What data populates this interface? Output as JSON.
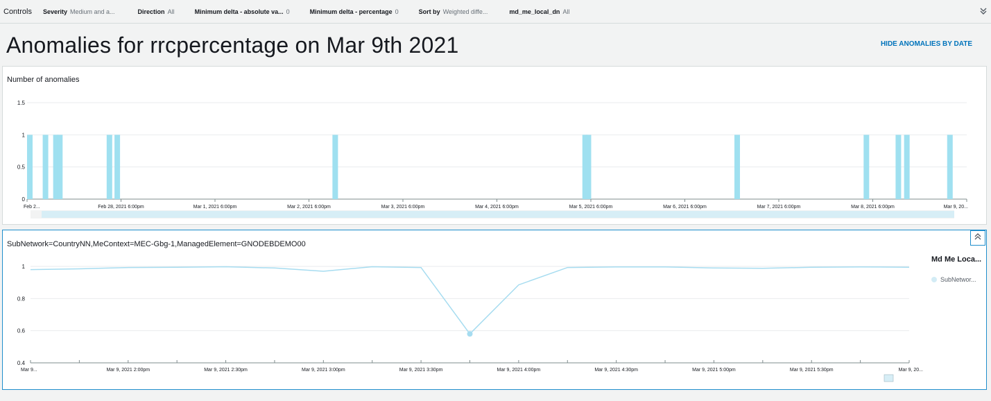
{
  "controls": {
    "title": "Controls",
    "items": [
      {
        "key": "Severity",
        "value": "Medium and a..."
      },
      {
        "key": "Direction",
        "value": "All"
      },
      {
        "key": "Minimum delta - absolute va...",
        "value": "0"
      },
      {
        "key": "Minimum delta - percentage",
        "value": "0"
      },
      {
        "key": "Sort by",
        "value": "Weighted diffe..."
      },
      {
        "key": "md_me_local_dn",
        "value": "All"
      }
    ],
    "expand_icon": "chevron-double-down-icon"
  },
  "page": {
    "title": "Anomalies for rrcpercentage on Mar 9th 2021",
    "hide_link": "HIDE ANOMALIES BY DATE"
  },
  "colors": {
    "bar": "#9fe0f0",
    "line": "#a6dcf0",
    "accent": "#1f8ecc",
    "link": "#0073bb"
  },
  "chart_data": [
    {
      "type": "bar",
      "title": "Number of anomalies",
      "ylim": [
        0,
        1.5
      ],
      "y_ticks": [
        "0",
        "0.5",
        "1",
        "1.5"
      ],
      "x_tick_labels": [
        "Feb 2...",
        "Feb 28, 2021 6:00pm",
        "Mar 1, 2021 6:00pm",
        "Mar 2, 2021 6:00pm",
        "Mar 3, 2021 6:00pm",
        "Mar 4, 2021 6:00pm",
        "Mar 5, 2021 6:00pm",
        "Mar 6, 2021 6:00pm",
        "Mar 7, 2021 6:00pm",
        "Mar 8, 2021 6:00pm",
        "Mar 9, 20..."
      ],
      "x_range": [
        "2021-02-27T20:00",
        "2021-03-09T20:00"
      ],
      "bars": [
        {
          "t": "2021-02-27T20:00",
          "value": 1
        },
        {
          "t": "2021-02-28T00:00",
          "value": 1
        },
        {
          "t": "2021-02-28T02:40",
          "value": 1
        },
        {
          "t": "2021-02-28T03:40",
          "value": 1
        },
        {
          "t": "2021-02-28T16:20",
          "value": 1
        },
        {
          "t": "2021-02-28T18:20",
          "value": 1
        },
        {
          "t": "2021-03-03T02:00",
          "value": 1
        },
        {
          "t": "2021-03-05T17:50",
          "value": 1
        },
        {
          "t": "2021-03-05T18:40",
          "value": 1
        },
        {
          "t": "2021-03-07T08:40",
          "value": 1
        },
        {
          "t": "2021-03-08T17:40",
          "value": 1
        },
        {
          "t": "2021-03-09T01:50",
          "value": 1
        },
        {
          "t": "2021-03-09T04:00",
          "value": 1
        },
        {
          "t": "2021-03-09T15:00",
          "value": 1
        }
      ]
    },
    {
      "type": "line",
      "title": "SubNetwork=CountryNN,MeContext=MEC-Gbg-1,ManagedElement=GNODEBDEMO00",
      "ylim": [
        0.4,
        1.0
      ],
      "y_ticks": [
        "0.4",
        "0.6",
        "0.8",
        "1"
      ],
      "x_tick_labels": [
        "Mar 9...",
        "Mar 9, 2021 2:00pm",
        "Mar 9, 2021 2:30pm",
        "Mar 9, 2021 3:00pm",
        "Mar 9, 2021 3:30pm",
        "Mar 9, 2021 4:00pm",
        "Mar 9, 2021 4:30pm",
        "Mar 9, 2021 5:00pm",
        "Mar 9, 2021 5:30pm",
        "Mar 9, 20..."
      ],
      "x_range": [
        "2021-03-09T13:30",
        "2021-03-09T18:00"
      ],
      "legend_title": "Md Me Loca...",
      "series": [
        {
          "name": "SubNetwor...",
          "points": [
            {
              "t": "2021-03-09T13:30",
              "y": 0.98
            },
            {
              "t": "2021-03-09T13:45",
              "y": 0.985
            },
            {
              "t": "2021-03-09T14:00",
              "y": 0.993
            },
            {
              "t": "2021-03-09T14:15",
              "y": 0.995
            },
            {
              "t": "2021-03-09T14:30",
              "y": 0.998
            },
            {
              "t": "2021-03-09T14:45",
              "y": 0.99
            },
            {
              "t": "2021-03-09T15:00",
              "y": 0.97
            },
            {
              "t": "2021-03-09T15:15",
              "y": 0.998
            },
            {
              "t": "2021-03-09T15:30",
              "y": 0.993
            },
            {
              "t": "2021-03-09T15:45",
              "y": 0.58
            },
            {
              "t": "2021-03-09T16:00",
              "y": 0.885
            },
            {
              "t": "2021-03-09T16:15",
              "y": 0.993
            },
            {
              "t": "2021-03-09T16:30",
              "y": 0.997
            },
            {
              "t": "2021-03-09T16:45",
              "y": 0.997
            },
            {
              "t": "2021-03-09T17:00",
              "y": 0.99
            },
            {
              "t": "2021-03-09T17:15",
              "y": 0.988
            },
            {
              "t": "2021-03-09T17:30",
              "y": 0.995
            },
            {
              "t": "2021-03-09T17:45",
              "y": 0.997
            },
            {
              "t": "2021-03-09T18:00",
              "y": 0.995
            }
          ],
          "highlight_index": 9
        }
      ]
    }
  ]
}
